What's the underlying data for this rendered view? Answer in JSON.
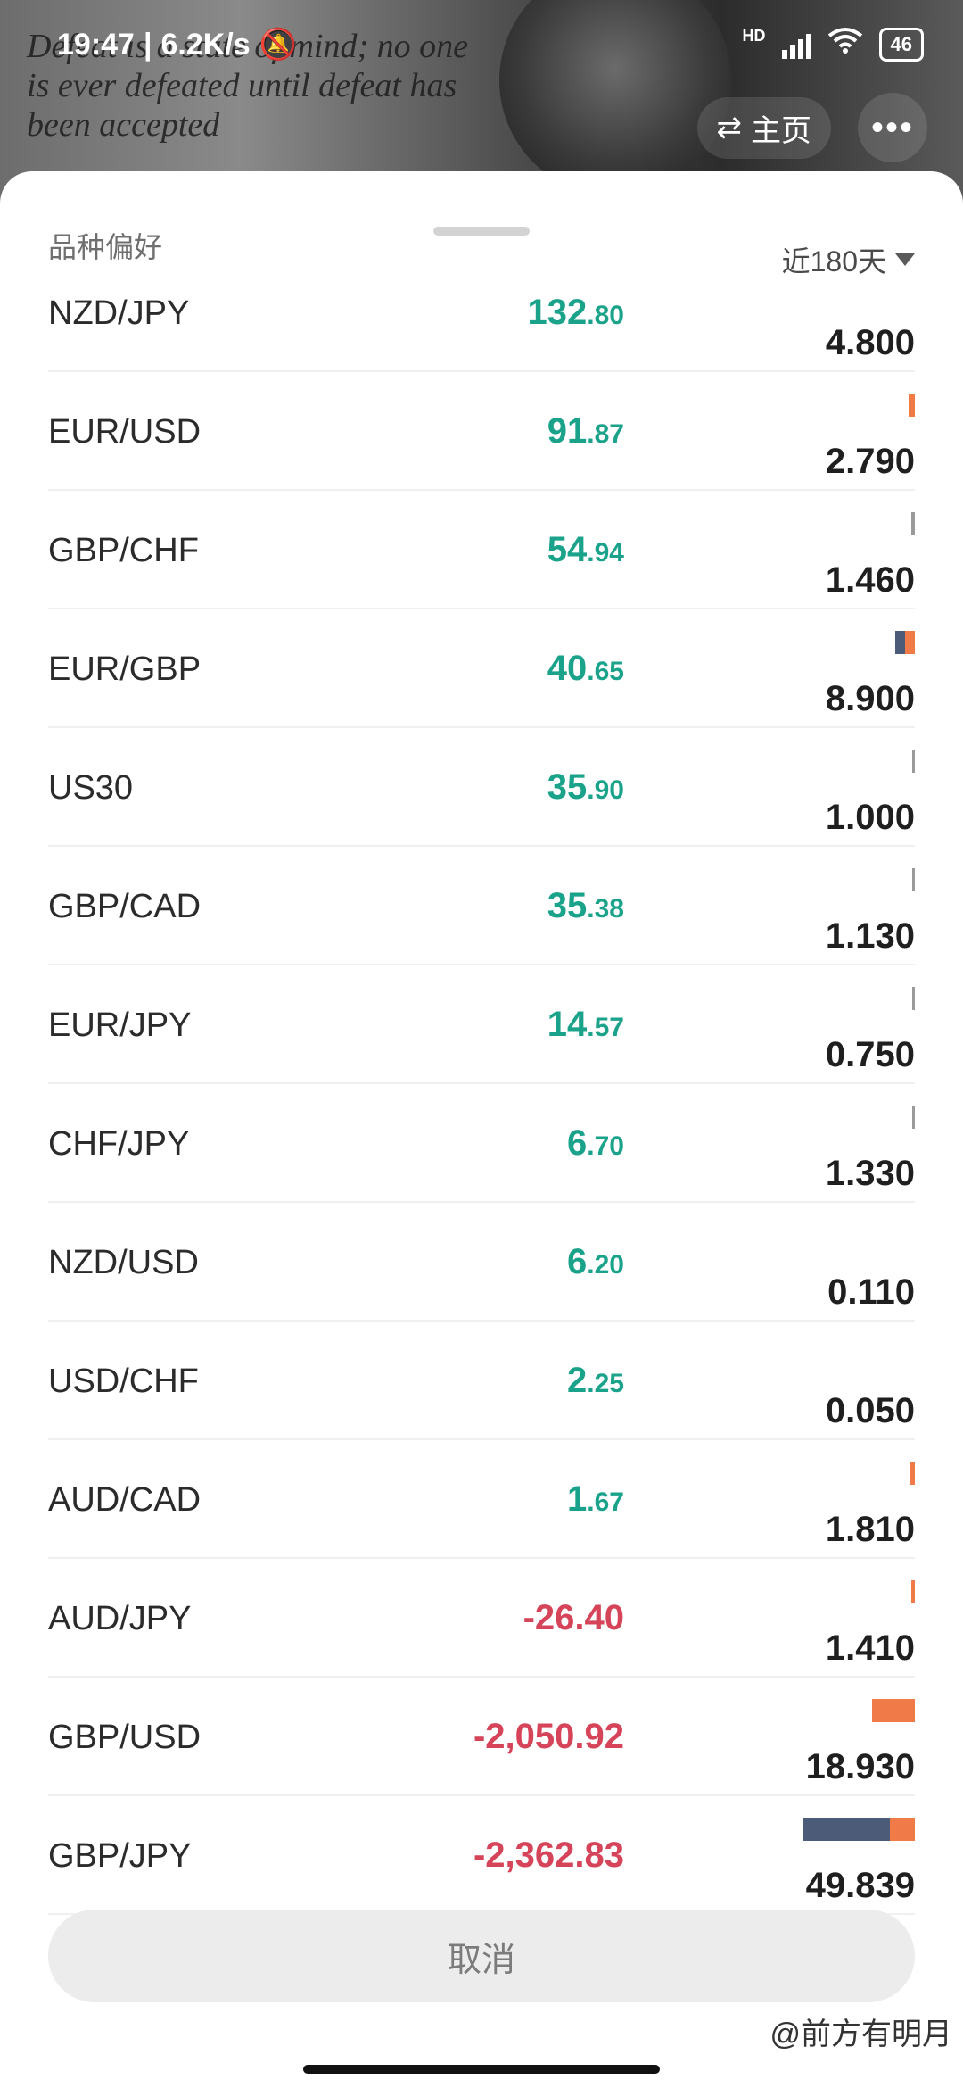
{
  "status": {
    "time": "19:47",
    "speed": "6.2K/s",
    "network": "HD",
    "battery": "46"
  },
  "background": {
    "quote": "Defeat is a state of mind; no one is ever defeated until defeat has been accepted",
    "home_label": "主页"
  },
  "sheet": {
    "title": "品种偏好",
    "period": "近180天",
    "rows": [
      {
        "symbol": "NZD/JPY",
        "pl_int": "132",
        "pl_dec": ".80",
        "sign": "pos",
        "volume": "4.800",
        "bar": {
          "blue": 0,
          "orange": 0,
          "gray": 0
        }
      },
      {
        "symbol": "EUR/USD",
        "pl_int": "91",
        "pl_dec": ".87",
        "sign": "pos",
        "volume": "2.790",
        "bar": {
          "blue": 0,
          "orange": 0.056,
          "gray": 0
        }
      },
      {
        "symbol": "GBP/CHF",
        "pl_int": "54",
        "pl_dec": ".94",
        "sign": "pos",
        "volume": "1.460",
        "bar": {
          "blue": 0,
          "orange": 0,
          "gray": 0.029
        }
      },
      {
        "symbol": "EUR/GBP",
        "pl_int": "40",
        "pl_dec": ".65",
        "sign": "pos",
        "volume": "8.900",
        "bar": {
          "blue": 0.09,
          "orange": 0.089,
          "gray": 0
        }
      },
      {
        "symbol": "US30",
        "pl_int": "35",
        "pl_dec": ".90",
        "sign": "pos",
        "volume": "1.000",
        "bar": {
          "blue": 0,
          "orange": 0,
          "gray": 0.02
        }
      },
      {
        "symbol": "GBP/CAD",
        "pl_int": "35",
        "pl_dec": ".38",
        "sign": "pos",
        "volume": "1.130",
        "bar": {
          "blue": 0,
          "orange": 0,
          "gray": 0.023
        }
      },
      {
        "symbol": "EUR/JPY",
        "pl_int": "14",
        "pl_dec": ".57",
        "sign": "pos",
        "volume": "0.750",
        "bar": {
          "blue": 0,
          "orange": 0,
          "gray": 0.015
        }
      },
      {
        "symbol": "CHF/JPY",
        "pl_int": "6",
        "pl_dec": ".70",
        "sign": "pos",
        "volume": "1.330",
        "bar": {
          "blue": 0,
          "orange": 0,
          "gray": 0.027
        }
      },
      {
        "symbol": "NZD/USD",
        "pl_int": "6",
        "pl_dec": ".20",
        "sign": "pos",
        "volume": "0.110",
        "bar": {
          "blue": 0,
          "orange": 0,
          "gray": 0
        }
      },
      {
        "symbol": "USD/CHF",
        "pl_int": "2",
        "pl_dec": ".25",
        "sign": "pos",
        "volume": "0.050",
        "bar": {
          "blue": 0,
          "orange": 0,
          "gray": 0
        }
      },
      {
        "symbol": "AUD/CAD",
        "pl_int": "1",
        "pl_dec": ".67",
        "sign": "pos",
        "volume": "1.810",
        "bar": {
          "blue": 0,
          "orange": 0.036,
          "gray": 0
        }
      },
      {
        "symbol": "AUD/JPY",
        "pl_int": "-26.40",
        "pl_dec": "",
        "sign": "neg",
        "volume": "1.410",
        "bar": {
          "blue": 0,
          "orange": 0.028,
          "gray": 0
        }
      },
      {
        "symbol": "GBP/USD",
        "pl_int": "-2,050.92",
        "pl_dec": "",
        "sign": "neg",
        "volume": "18.930",
        "bar": {
          "blue": 0,
          "orange": 0.38,
          "gray": 0
        }
      },
      {
        "symbol": "GBP/JPY",
        "pl_int": "-2,362.83",
        "pl_dec": "",
        "sign": "neg",
        "volume": "49.839",
        "bar": {
          "blue": 0.78,
          "orange": 0.22,
          "gray": 0
        }
      }
    ],
    "cancel_label": "取消"
  },
  "watermark": "@前方有明月",
  "colors": {
    "positive": "#1aa38a",
    "negative": "#d6445a",
    "bar_blue": "#4c5b78",
    "bar_orange": "#f07b48"
  }
}
